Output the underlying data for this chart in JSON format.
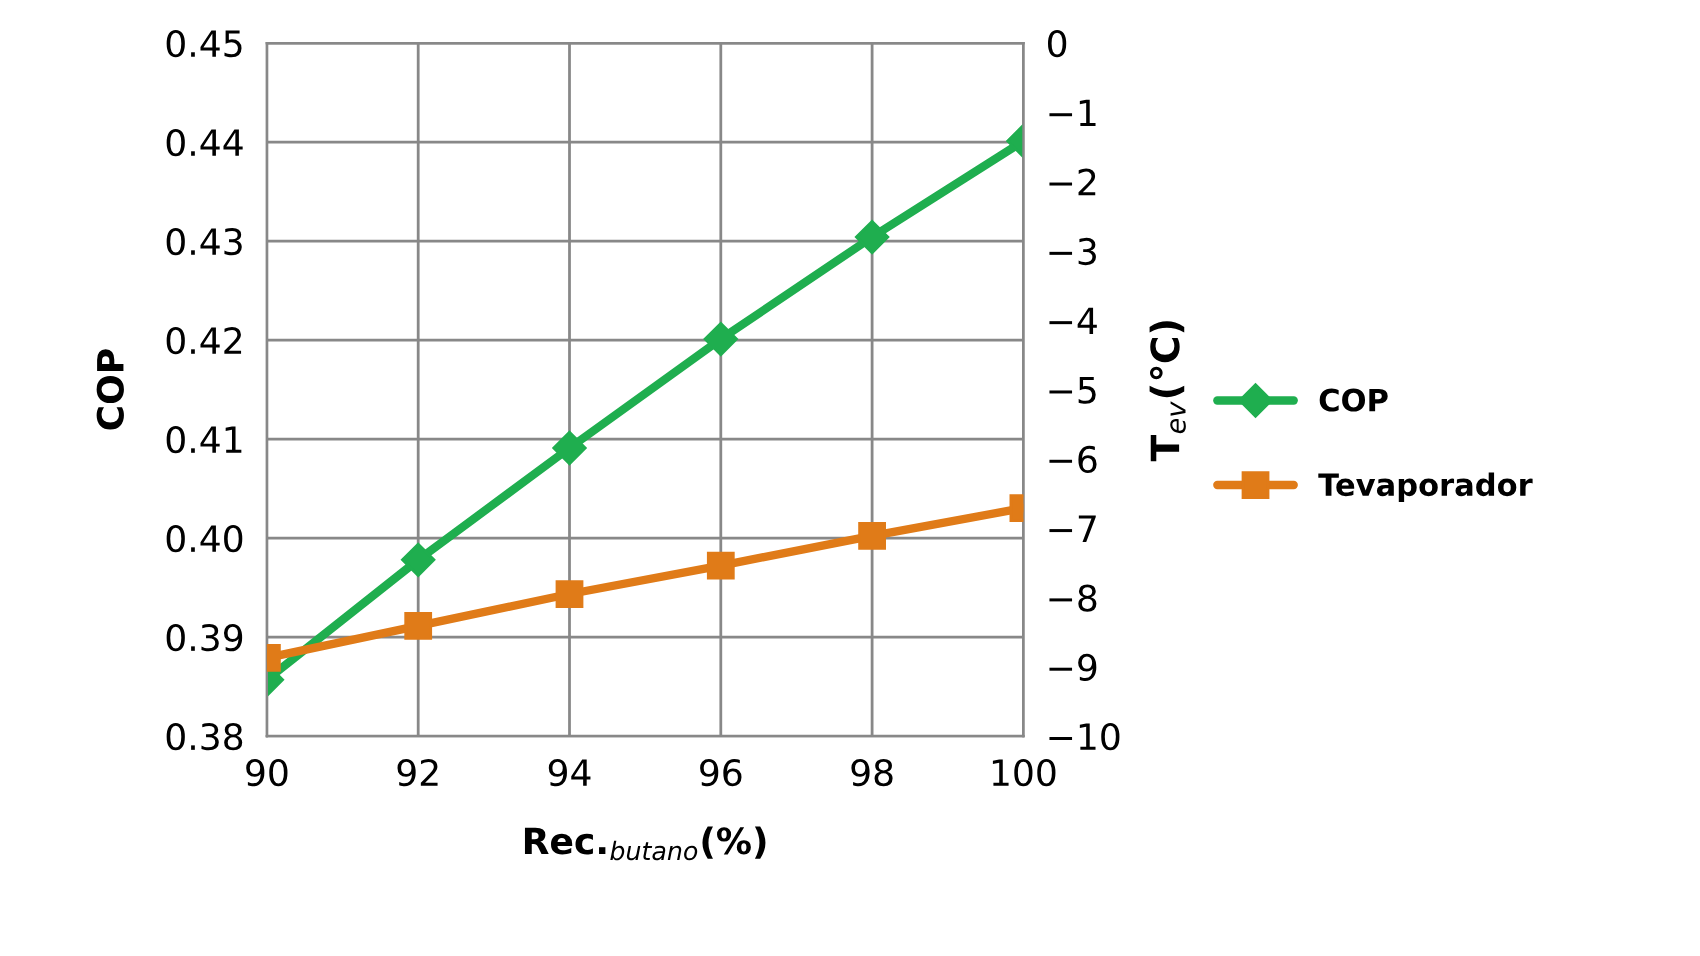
{
  "chart_data": {
    "type": "line",
    "xlabel": "Rec.$_{butano}$(%)",
    "ylabel": "COP",
    "y2label": "T$_{ev}$(℃)",
    "x": [
      90,
      92,
      94,
      96,
      98,
      100
    ],
    "series": [
      {
        "name": "COP",
        "color": "#1fae4f",
        "marker": "diamond",
        "values": [
          0.3857,
          0.3978,
          0.4091,
          0.4201,
          0.4304,
          0.4401
        ]
      },
      {
        "name": "Tevaporador",
        "color": "#e07b18",
        "marker": "square",
        "axis": "y2",
        "values": [
          -8.87,
          -8.41,
          -7.95,
          -7.54,
          -7.11,
          -6.71
        ]
      }
    ],
    "xlim": [
      90,
      100
    ],
    "xticks": [
      90,
      92,
      94,
      96,
      98,
      100
    ],
    "ylim": [
      0.38,
      0.45
    ],
    "yticks": [
      {
        "value": 0.38,
        "label": "0.38"
      },
      {
        "value": 0.39,
        "label": "0.39"
      },
      {
        "value": 0.4,
        "label": "0.40"
      },
      {
        "value": 0.41,
        "label": "0.41"
      },
      {
        "value": 0.42,
        "label": "0.42"
      },
      {
        "value": 0.43,
        "label": "0.43"
      },
      {
        "value": 0.44,
        "label": "0.44"
      },
      {
        "value": 0.45,
        "label": "0.45"
      }
    ],
    "y2lim": [
      -10,
      0
    ],
    "y2ticks": [
      -10,
      -9,
      -8,
      -7,
      -6,
      -5,
      -4,
      -3,
      -2,
      -1,
      0
    ],
    "grid": true,
    "legend": "right",
    "line_style": "solid"
  }
}
